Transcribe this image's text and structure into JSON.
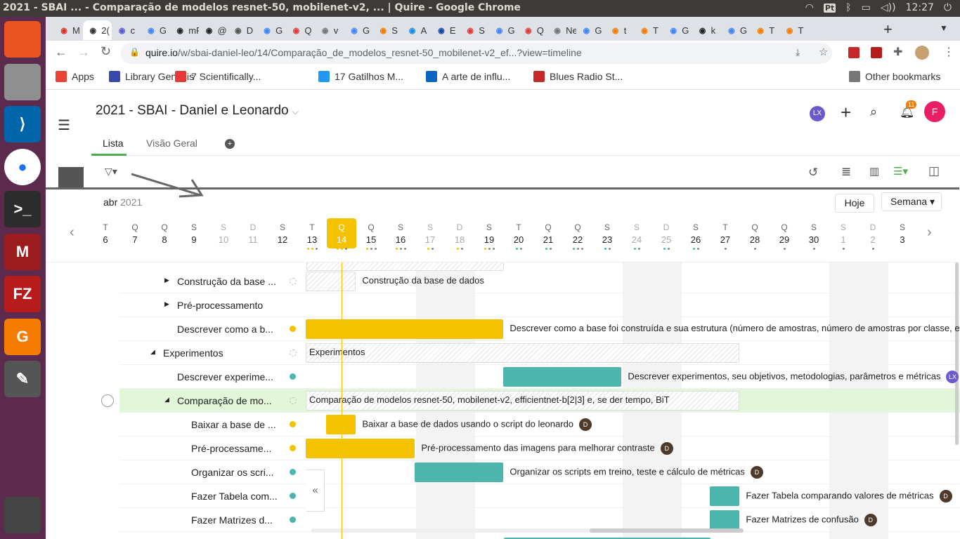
{
  "os": {
    "window_title": "2021 - SBAI ... - Comparação de modelos resnet-50, mobilenet-v2, ... | Quire - Google Chrome",
    "clock": "12:27",
    "input_method": "Pt"
  },
  "launcher": [
    "ubuntu",
    "files",
    "vscode",
    "chrome",
    "terminal",
    "mendeley",
    "filezilla",
    "pdf",
    "text-editor",
    "trash"
  ],
  "tabs": [
    {
      "label": "M",
      "color": "#d93025"
    },
    {
      "label": "2(",
      "color": "#333",
      "active": true
    },
    {
      "label": "c",
      "color": "#5b5bd6"
    },
    {
      "label": "G",
      "color": "#4285f4"
    },
    {
      "label": "mR",
      "color": "#222"
    },
    {
      "label": "@",
      "color": "#222"
    },
    {
      "label": "D",
      "color": "#555"
    },
    {
      "label": "G",
      "color": "#4285f4"
    },
    {
      "label": "Q",
      "color": "#e53935"
    },
    {
      "label": "v",
      "color": "#777"
    },
    {
      "label": "G",
      "color": "#4285f4"
    },
    {
      "label": "S",
      "color": "#f57c00"
    },
    {
      "label": "A",
      "color": "#1e88e5"
    },
    {
      "label": "E",
      "color": "#0d47a1"
    },
    {
      "label": "S",
      "color": "#e53935"
    },
    {
      "label": "G",
      "color": "#4285f4"
    },
    {
      "label": "Q",
      "color": "#e53935"
    },
    {
      "label": "New",
      "color": "#777"
    },
    {
      "label": "G",
      "color": "#4285f4"
    },
    {
      "label": "t",
      "color": "#f57c00"
    },
    {
      "label": "T",
      "color": "#f57c00"
    },
    {
      "label": "G",
      "color": "#4285f4"
    },
    {
      "label": "k",
      "color": "#222"
    },
    {
      "label": "G",
      "color": "#4285f4"
    },
    {
      "label": "T",
      "color": "#f57c00"
    },
    {
      "label": "T",
      "color": "#f57c00"
    }
  ],
  "address": {
    "domain": "quire.io",
    "path": "/w/sbai-daniel-leo/14/Comparação_de_modelos_resnet-50_mobilenet-v2_ef...?view=timeline"
  },
  "bookmarks": [
    {
      "label": "Apps",
      "color": "#ea4335"
    },
    {
      "label": "Library Genesis",
      "color": "#3949ab"
    },
    {
      "label": "7 Scientifically...",
      "color": "#e53935"
    },
    {
      "label": "17 Gatilhos M...",
      "color": "#2196f3"
    },
    {
      "label": "A arte de influ...",
      "color": "#0a66c2"
    },
    {
      "label": "Blues Radio St...",
      "color": "#c62828"
    }
  ],
  "other_bookmarks": "Other bookmarks",
  "project": {
    "title": "2021 - SBAI - Daniel e Leonardo",
    "tabs": [
      "Lista",
      "Visão Geral"
    ],
    "user_initials": "LX",
    "avatar": "F",
    "notifications": "11"
  },
  "timeline": {
    "month": "abr",
    "year": "2021",
    "today_button": "Hoje",
    "range_select": "Semana",
    "days": [
      {
        "w": "T",
        "n": "6",
        "d": []
      },
      {
        "w": "Q",
        "n": "7",
        "d": []
      },
      {
        "w": "Q",
        "n": "8",
        "d": []
      },
      {
        "w": "S",
        "n": "9",
        "d": []
      },
      {
        "w": "S",
        "n": "10",
        "d": [],
        "we": true
      },
      {
        "w": "D",
        "n": "11",
        "d": [],
        "we": true
      },
      {
        "w": "S",
        "n": "12",
        "d": []
      },
      {
        "w": "T",
        "n": "13",
        "d": [
          "#f5c200",
          "#f5c200",
          "#888"
        ]
      },
      {
        "w": "Q",
        "n": "14",
        "d": [
          "#f5c200",
          "#f5c200",
          "#888"
        ],
        "today": true
      },
      {
        "w": "Q",
        "n": "15",
        "d": [
          "#f5c200",
          "#888",
          "#888"
        ]
      },
      {
        "w": "S",
        "n": "16",
        "d": [
          "#f5c200",
          "#888",
          "#888"
        ]
      },
      {
        "w": "S",
        "n": "17",
        "d": [
          "#f5c200",
          "#888"
        ],
        "we": true
      },
      {
        "w": "D",
        "n": "18",
        "d": [
          "#f5c200",
          "#888"
        ],
        "we": true
      },
      {
        "w": "S",
        "n": "19",
        "d": [
          "#f5c200",
          "#888",
          "#888"
        ]
      },
      {
        "w": "T",
        "n": "20",
        "d": [
          "#4db6ac",
          "#888"
        ]
      },
      {
        "w": "Q",
        "n": "21",
        "d": [
          "#4db6ac",
          "#888"
        ]
      },
      {
        "w": "Q",
        "n": "22",
        "d": [
          "#4db6ac",
          "#888",
          "#888"
        ]
      },
      {
        "w": "S",
        "n": "23",
        "d": [
          "#4db6ac",
          "#888"
        ]
      },
      {
        "w": "S",
        "n": "24",
        "d": [
          "#4db6ac",
          "#888"
        ],
        "we": true
      },
      {
        "w": "D",
        "n": "25",
        "d": [
          "#4db6ac",
          "#888"
        ],
        "we": true
      },
      {
        "w": "S",
        "n": "26",
        "d": [
          "#4db6ac",
          "#888"
        ]
      },
      {
        "w": "T",
        "n": "27",
        "d": [
          "#888"
        ]
      },
      {
        "w": "Q",
        "n": "28",
        "d": [
          "#888"
        ]
      },
      {
        "w": "Q",
        "n": "29",
        "d": [
          "#888"
        ]
      },
      {
        "w": "S",
        "n": "30",
        "d": [
          "#888"
        ]
      },
      {
        "w": "S",
        "n": "1",
        "d": [
          "#888"
        ],
        "we": true
      },
      {
        "w": "D",
        "n": "2",
        "d": [
          "#888"
        ],
        "we": true
      },
      {
        "w": "S",
        "n": "3",
        "d": []
      }
    ]
  },
  "tasks": [
    {
      "label": "Construção da base ...",
      "indent": 82,
      "arrow": "right",
      "dot": "ring",
      "bar_start": 0,
      "bar_span": 1.7,
      "bar_type": "hatch",
      "bar_label": "Construção da base de dados",
      "avatar": ""
    },
    {
      "label": "Pré-processamento",
      "indent": 82,
      "arrow": "right",
      "dot": "",
      "bar_start": null,
      "bar_label": "",
      "avatar": ""
    },
    {
      "label": "Descrever como a b...",
      "indent": 82,
      "arrow": "",
      "dot": "#f5c200",
      "bar_start": 0,
      "bar_span": 6.7,
      "bar_type": "yellow",
      "bar_label": "Descrever como a base foi construída e sua estrutura (número de amostras, número de amostras por classe, etc.)",
      "avatar": ""
    },
    {
      "label": "Experimentos",
      "indent": 62,
      "arrow": "down",
      "dot": "ring",
      "bar_start": 0,
      "bar_span": 14.7,
      "bar_type": "hatch",
      "bar_label": "Experimentos",
      "bar_label_inside": true,
      "avatar": ""
    },
    {
      "label": "Descrever experime...",
      "indent": 82,
      "arrow": "",
      "dot": "#4db6ac",
      "bar_start": 6.7,
      "bar_span": 4,
      "bar_type": "teal",
      "bar_label": "Descrever experimentos, seu objetivos, metodologias, parâmetros e métricas",
      "avatar": "LX"
    },
    {
      "label": "Comparação de mo...",
      "indent": 82,
      "arrow": "down",
      "dot": "ring",
      "bar_start": 0,
      "bar_span": 14.7,
      "bar_type": "hatch",
      "bar_label": "Comparação de modelos resnet-50, mobilenet-v2, efficientnet-b[2|3] e, se der tempo, BiT",
      "bar_label_inside": true,
      "avatar": "",
      "highlight": true
    },
    {
      "label": "Baixar a base de ...",
      "indent": 102,
      "arrow": "",
      "dot": "#f5c200",
      "bar_start": 0.7,
      "bar_span": 1,
      "bar_type": "yellow",
      "bar_label": "Baixar a base de dados usando o script do leonardo",
      "avatar": "D"
    },
    {
      "label": "Pré-processame...",
      "indent": 102,
      "arrow": "",
      "dot": "#f5c200",
      "bar_start": 0,
      "bar_span": 3.7,
      "bar_type": "yellow",
      "bar_label": "Pré-processamento das imagens para melhorar contraste",
      "avatar": "D"
    },
    {
      "label": "Organizar os scri...",
      "indent": 102,
      "arrow": "",
      "dot": "#4db6ac",
      "bar_start": 3.7,
      "bar_span": 3,
      "bar_type": "teal",
      "bar_label": "Organizar os scripts em treino, teste e cálculo de métricas",
      "avatar": "D"
    },
    {
      "label": "Fazer Tabela com...",
      "indent": 102,
      "arrow": "",
      "dot": "#4db6ac",
      "bar_start": 13.7,
      "bar_span": 1,
      "bar_type": "teal",
      "bar_label": "Fazer Tabela comparando valores de métricas",
      "avatar": "D"
    },
    {
      "label": "Fazer Matrizes d...",
      "indent": 102,
      "arrow": "",
      "dot": "#4db6ac",
      "bar_start": 13.7,
      "bar_span": 1,
      "bar_type": "teal",
      "bar_label": "Fazer Matrizes de confusão",
      "avatar": "D"
    }
  ],
  "colors": {
    "yellow": "#f5c200",
    "teal": "#4db6ac",
    "highlight": "#e2f6d9",
    "launcher": "#5c2a4c"
  }
}
